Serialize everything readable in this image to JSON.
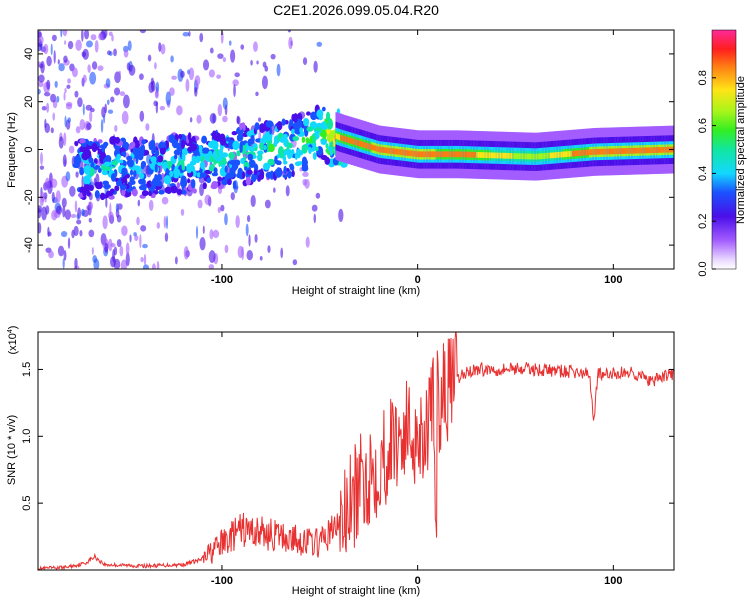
{
  "title": "C2E1.2026.099.05.04.R20",
  "chart_data": [
    {
      "type": "heatmap",
      "name": "spectrogram",
      "xlabel": "Height of straight line (km)",
      "ylabel": "Frequency (Hz)",
      "xlim": [
        -194,
        131
      ],
      "ylim": [
        -50,
        50
      ],
      "xticks": [
        -100,
        0,
        100
      ],
      "xtick_labels": [
        "-100",
        "0",
        "100"
      ],
      "yticks": [
        -40,
        -20,
        0,
        20,
        40
      ],
      "ytick_labels": [
        "-40",
        "-20",
        "0",
        "20",
        "40"
      ],
      "colorbar": {
        "label": "Normalized spectral amplitude",
        "range": [
          0,
          1
        ],
        "ticks": [
          0.0,
          0.2,
          0.4,
          0.6,
          0.8
        ],
        "tick_labels": [
          "0.0",
          "0.2",
          "0.4",
          "0.6",
          "0.8"
        ]
      },
      "center_line": [
        {
          "x": -175,
          "freq": -8,
          "amp": 0.35
        },
        {
          "x": -140,
          "freq": -8,
          "amp": 0.35
        },
        {
          "x": -110,
          "freq": -5,
          "amp": 0.38
        },
        {
          "x": -80,
          "freq": -1,
          "amp": 0.42
        },
        {
          "x": -60,
          "freq": 2,
          "amp": 0.45
        },
        {
          "x": -50,
          "freq": 8,
          "amp": 0.5
        },
        {
          "x": -40,
          "freq": 5,
          "amp": 0.75
        },
        {
          "x": -20,
          "freq": 0,
          "amp": 0.85
        },
        {
          "x": 0,
          "freq": -2,
          "amp": 0.85
        },
        {
          "x": 20,
          "freq": -2,
          "amp": 0.8
        },
        {
          "x": 60,
          "freq": -3,
          "amp": 0.6
        },
        {
          "x": 90,
          "freq": -1,
          "amp": 0.85
        },
        {
          "x": 131,
          "freq": 0,
          "amp": 0.85
        }
      ]
    },
    {
      "type": "line",
      "name": "snr",
      "xlabel": "Height of straight line (km)",
      "ylabel": "SNR (10 * v/v)",
      "scale_label": "(x10",
      "scale_exponent": "4",
      "xlim": [
        -194,
        131
      ],
      "ylim": [
        0,
        1.78
      ],
      "xticks": [
        -100,
        0,
        100
      ],
      "xtick_labels": [
        "-100",
        "0",
        "100"
      ],
      "yticks": [
        0.5,
        1.0,
        1.5
      ],
      "ytick_labels": [
        "0.5",
        "1.0",
        "1.5"
      ],
      "color": "#e83030",
      "series": [
        {
          "name": "SNR",
          "x": [
            -194,
            -180,
            -170,
            -165,
            -160,
            -140,
            -120,
            -110,
            -100,
            -90,
            -80,
            -70,
            -60,
            -50,
            -40,
            -35,
            -30,
            -25,
            -20,
            -15,
            -10,
            -5,
            0,
            5,
            8,
            9,
            10,
            12,
            15,
            20,
            25,
            30,
            40,
            50,
            60,
            70,
            80,
            88,
            90,
            92,
            95,
            100,
            110,
            115,
            120,
            125,
            131
          ],
          "y": [
            0.01,
            0.02,
            0.05,
            0.1,
            0.04,
            0.03,
            0.04,
            0.08,
            0.2,
            0.3,
            0.28,
            0.25,
            0.22,
            0.2,
            0.35,
            0.45,
            0.6,
            0.72,
            0.8,
            0.9,
            1.0,
            1.05,
            1.0,
            1.1,
            1.2,
            0.15,
            1.25,
            1.3,
            1.35,
            1.42,
            1.48,
            1.5,
            1.5,
            1.51,
            1.5,
            1.49,
            1.48,
            1.46,
            1.1,
            1.48,
            1.45,
            1.47,
            1.48,
            1.44,
            1.4,
            1.45,
            1.46
          ]
        }
      ]
    }
  ]
}
